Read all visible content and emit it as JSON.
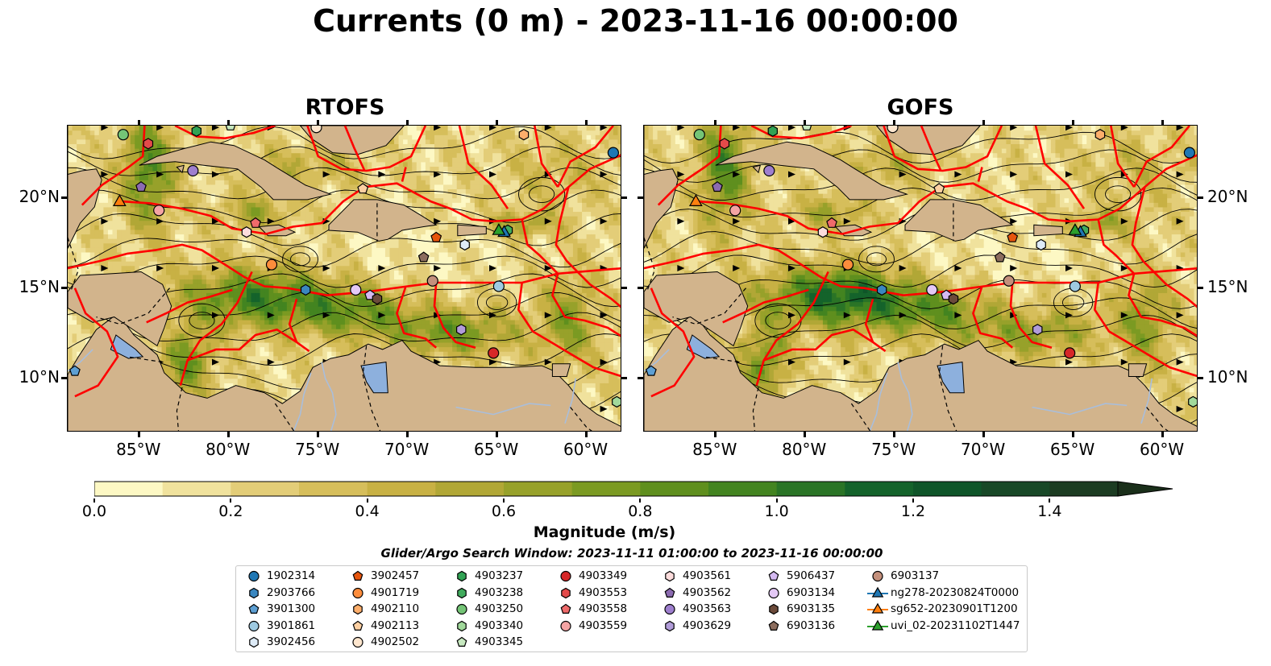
{
  "figure": {
    "title": "Currents (0 m) - 2023-11-16 00:00:00",
    "panels": [
      {
        "id": "rtofs",
        "title": "RTOFS"
      },
      {
        "id": "gofs",
        "title": "GOFS"
      }
    ],
    "colors": {
      "land": "#d2b48c",
      "water_body": "#8db0dd",
      "river": "#a9bedb",
      "eez": "#ff0000",
      "streamline": "#000000"
    }
  },
  "chart_data": {
    "type": "heatmap",
    "title": "Currents (0 m) - 2023-11-16 00:00:00",
    "xlabel": "",
    "ylabel": "",
    "x_ticks": [
      {
        "value": -85,
        "label": "85°W"
      },
      {
        "value": -80,
        "label": "80°W"
      },
      {
        "value": -75,
        "label": "75°W"
      },
      {
        "value": -70,
        "label": "70°W"
      },
      {
        "value": -65,
        "label": "65°W"
      },
      {
        "value": -60,
        "label": "60°W"
      }
    ],
    "y_ticks": [
      {
        "value": 20,
        "label": "20°N"
      },
      {
        "value": 15,
        "label": "15°N"
      },
      {
        "value": 10,
        "label": "10°N"
      }
    ],
    "xlim": [
      -89,
      -58
    ],
    "ylim": [
      7,
      24
    ],
    "colorbar": {
      "label": "Magnitude (m/s)",
      "range": [
        0,
        1.5
      ],
      "extend": "max",
      "step": 0.1,
      "ticks": [
        {
          "value": 0.0,
          "label": "0.0"
        },
        {
          "value": 0.2,
          "label": "0.2"
        },
        {
          "value": 0.4,
          "label": "0.4"
        },
        {
          "value": 0.6,
          "label": "0.6"
        },
        {
          "value": 0.8,
          "label": "0.8"
        },
        {
          "value": 1.0,
          "label": "1.0"
        },
        {
          "value": 1.2,
          "label": "1.2"
        },
        {
          "value": 1.4,
          "label": "1.4"
        }
      ],
      "colors": [
        "#fdf8c4",
        "#f0e29d",
        "#e3cd78",
        "#d6be5b",
        "#c8b144",
        "#b1a736",
        "#97a12a",
        "#7b9a22",
        "#5f8f1e",
        "#438420",
        "#2a7426",
        "#14632b",
        "#0f5529",
        "#184827",
        "#1c3c22",
        "#1a2f1a"
      ]
    },
    "grid": false,
    "legend_placement": "bottom-center"
  },
  "annotations": {
    "search_window": "Glider/Argo Search Window: 2023-11-11 01:00:00 to 2023-11-16 00:00:00"
  },
  "observations": [
    {
      "name": "1902314",
      "marker": "circle",
      "color": "#1f77b4",
      "lon": -58.5,
      "lat": 22.5
    },
    {
      "name": "2903766",
      "marker": "hexagon",
      "color": "#3a87c0",
      "lon": -75.7,
      "lat": 14.9
    },
    {
      "name": "3901300",
      "marker": "pentagon",
      "color": "#5d9fd3",
      "lon": -88.6,
      "lat": 10.4
    },
    {
      "name": "3901861",
      "marker": "circle",
      "color": "#9ecae1",
      "lon": -64.9,
      "lat": 15.1
    },
    {
      "name": "3902456",
      "marker": "hexagon",
      "color": "#deebf7",
      "lon": -66.8,
      "lat": 17.4
    },
    {
      "name": "3902457",
      "marker": "pentagon",
      "color": "#e6550d",
      "lon": -68.4,
      "lat": 17.8
    },
    {
      "name": "4901719",
      "marker": "circle",
      "color": "#fd8d3c",
      "lon": -77.6,
      "lat": 16.3
    },
    {
      "name": "4902110",
      "marker": "hexagon",
      "color": "#fdae6b",
      "lon": -63.5,
      "lat": 23.5
    },
    {
      "name": "4902113",
      "marker": "pentagon",
      "color": "#fdd0a2",
      "lon": -72.5,
      "lat": 20.5
    },
    {
      "name": "4902502",
      "marker": "circle",
      "color": "#fee6ce",
      "lon": -75.1,
      "lat": 23.9
    },
    {
      "name": "4903237",
      "marker": "hexagon",
      "color": "#31a354",
      "lon": -81.8,
      "lat": 23.7
    },
    {
      "name": "4903238",
      "marker": "hexagon",
      "color": "#41ab5d",
      "lon": -64.4,
      "lat": 18.2
    },
    {
      "name": "4903250",
      "marker": "circle",
      "color": "#74c476",
      "lon": -85.9,
      "lat": 23.5
    },
    {
      "name": "4903340",
      "marker": "hexagon",
      "color": "#a1d99b",
      "lon": -58.3,
      "lat": 8.7
    },
    {
      "name": "4903345",
      "marker": "pentagon",
      "color": "#c7e9c0",
      "lon": -79.9,
      "lat": 24.0
    },
    {
      "name": "4903349",
      "marker": "circle",
      "color": "#d62728",
      "lon": -65.2,
      "lat": 11.4
    },
    {
      "name": "4903553",
      "marker": "hexagon",
      "color": "#e34a4a",
      "lon": -84.5,
      "lat": 23.0
    },
    {
      "name": "4903558",
      "marker": "pentagon",
      "color": "#ef6b6b",
      "lon": -78.5,
      "lat": 18.6
    },
    {
      "name": "4903559",
      "marker": "circle",
      "color": "#f4a4a4",
      "lon": -83.9,
      "lat": 19.3
    },
    {
      "name": "4903561",
      "marker": "hexagon",
      "color": "#fcdcdc",
      "lon": -79.0,
      "lat": 18.1
    },
    {
      "name": "4903562",
      "marker": "pentagon",
      "color": "#8c6bb1",
      "lon": -84.9,
      "lat": 20.6
    },
    {
      "name": "4903563",
      "marker": "circle",
      "color": "#9e7fce",
      "lon": -82.0,
      "lat": 21.5
    },
    {
      "name": "4903629",
      "marker": "hexagon",
      "color": "#b19cd9",
      "lon": -67.0,
      "lat": 12.7
    },
    {
      "name": "5906437",
      "marker": "pentagon",
      "color": "#d4b9f1",
      "lon": -72.1,
      "lat": 14.6
    },
    {
      "name": "6903134",
      "marker": "circle",
      "color": "#e4c9f6",
      "lon": -72.9,
      "lat": 14.9
    },
    {
      "name": "6903135",
      "marker": "hexagon",
      "color": "#6b4a3a",
      "lon": -71.7,
      "lat": 14.4
    },
    {
      "name": "6903136",
      "marker": "pentagon",
      "color": "#8c6d5e",
      "lon": -69.1,
      "lat": 16.7
    },
    {
      "name": "6903137",
      "marker": "circle",
      "color": "#c4907c",
      "lon": -68.6,
      "lat": 15.4
    },
    {
      "name": "ng278-20230824T0000",
      "marker": "triangle",
      "color": "#1f77b4",
      "lon": -64.6,
      "lat": 18.1
    },
    {
      "name": "sg652-20230901T1200",
      "marker": "triangle",
      "color": "#ff7f0e",
      "lon": -86.1,
      "lat": 19.8
    },
    {
      "name": "uvi_02-20231102T1447",
      "marker": "triangle",
      "color": "#2ca02c",
      "lon": -64.9,
      "lat": 18.2
    }
  ]
}
